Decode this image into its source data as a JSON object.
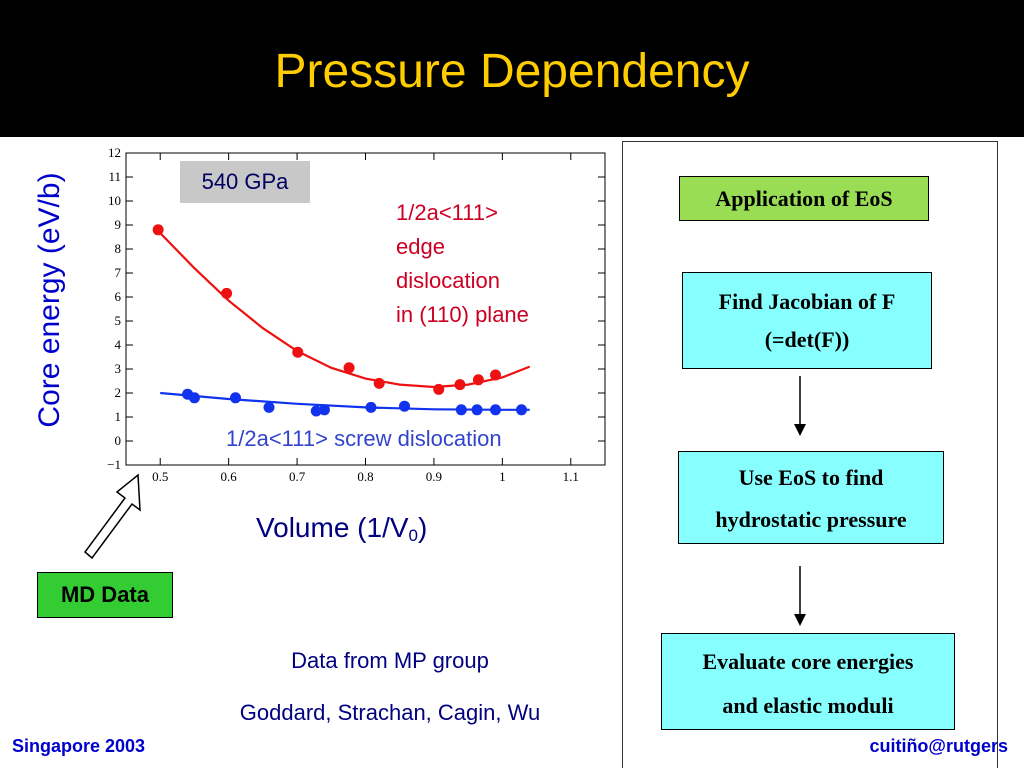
{
  "slide": {
    "title": "Pressure Dependency",
    "pressure_label": "540 GPa",
    "edge_label_lines": [
      "1/2a<111>",
      "edge",
      "dislocation",
      "in (110) plane"
    ],
    "screw_label": "1/2a<111> screw dislocation",
    "md_data_label": "MD Data",
    "credit_line1": "Data from MP group",
    "credit_line2": "Goddard, Strachan, Cagin, Wu",
    "footer_left": "Singapore 2003",
    "footer_right": "cuitiño@rutgers"
  },
  "flow": {
    "step1": "Application of EoS",
    "step2_line1": "Find Jacobian of F",
    "step2_line2": "(=det(F))",
    "step3_line1": "Use EoS to find",
    "step3_line2": "hydrostatic pressure",
    "step4_line1": "Evaluate core energies",
    "step4_line2": "and elastic moduli"
  },
  "chart_data": {
    "type": "scatter",
    "ylabel": "Core energy (eV/b)",
    "xlabel_main": "Volume (1/V",
    "xlabel_sub": "0",
    "xlabel_end": ")",
    "xlim": [
      0.45,
      1.15
    ],
    "ylim": [
      -1,
      12
    ],
    "xticks": [
      0.5,
      0.6,
      0.7,
      0.8,
      0.9,
      1,
      1.1
    ],
    "xtick_labels": [
      "0.5",
      "0.6",
      "0.7",
      "0.8",
      "0.9",
      "1",
      "1.1"
    ],
    "yticks": [
      -1,
      0,
      1,
      2,
      3,
      4,
      5,
      6,
      7,
      8,
      9,
      10,
      11,
      12
    ],
    "ytick_labels": [
      "−1",
      "0",
      "1",
      "2",
      "3",
      "4",
      "5",
      "6",
      "7",
      "8",
      "9",
      "10",
      "11",
      "12"
    ],
    "grid": false,
    "series": [
      {
        "name": "1/2a<111> edge dislocation in (110) plane",
        "color": "#ee1111",
        "points": [
          [
            0.497,
            8.8
          ],
          [
            0.597,
            6.15
          ],
          [
            0.701,
            3.7
          ],
          [
            0.776,
            3.05
          ],
          [
            0.82,
            2.4
          ],
          [
            0.907,
            2.15
          ],
          [
            0.938,
            2.35
          ],
          [
            0.965,
            2.55
          ],
          [
            0.99,
            2.75
          ]
        ],
        "fit": [
          [
            0.497,
            8.75
          ],
          [
            0.55,
            7.2
          ],
          [
            0.6,
            5.85
          ],
          [
            0.65,
            4.7
          ],
          [
            0.7,
            3.75
          ],
          [
            0.75,
            3.05
          ],
          [
            0.8,
            2.6
          ],
          [
            0.85,
            2.35
          ],
          [
            0.9,
            2.25
          ],
          [
            0.95,
            2.35
          ],
          [
            1.0,
            2.65
          ],
          [
            1.04,
            3.1
          ]
        ]
      },
      {
        "name": "1/2a<111> screw dislocation",
        "color": "#1133ee",
        "points": [
          [
            0.54,
            1.95
          ],
          [
            0.55,
            1.8
          ],
          [
            0.61,
            1.8
          ],
          [
            0.659,
            1.4
          ],
          [
            0.728,
            1.25
          ],
          [
            0.74,
            1.3
          ],
          [
            0.808,
            1.4
          ],
          [
            0.857,
            1.45
          ],
          [
            0.94,
            1.3
          ],
          [
            0.963,
            1.3
          ],
          [
            0.99,
            1.3
          ],
          [
            1.028,
            1.3
          ]
        ],
        "fit": [
          [
            0.5,
            2.0
          ],
          [
            0.6,
            1.75
          ],
          [
            0.7,
            1.55
          ],
          [
            0.8,
            1.4
          ],
          [
            0.9,
            1.32
          ],
          [
            1.0,
            1.3
          ],
          [
            1.04,
            1.3
          ]
        ]
      }
    ]
  }
}
